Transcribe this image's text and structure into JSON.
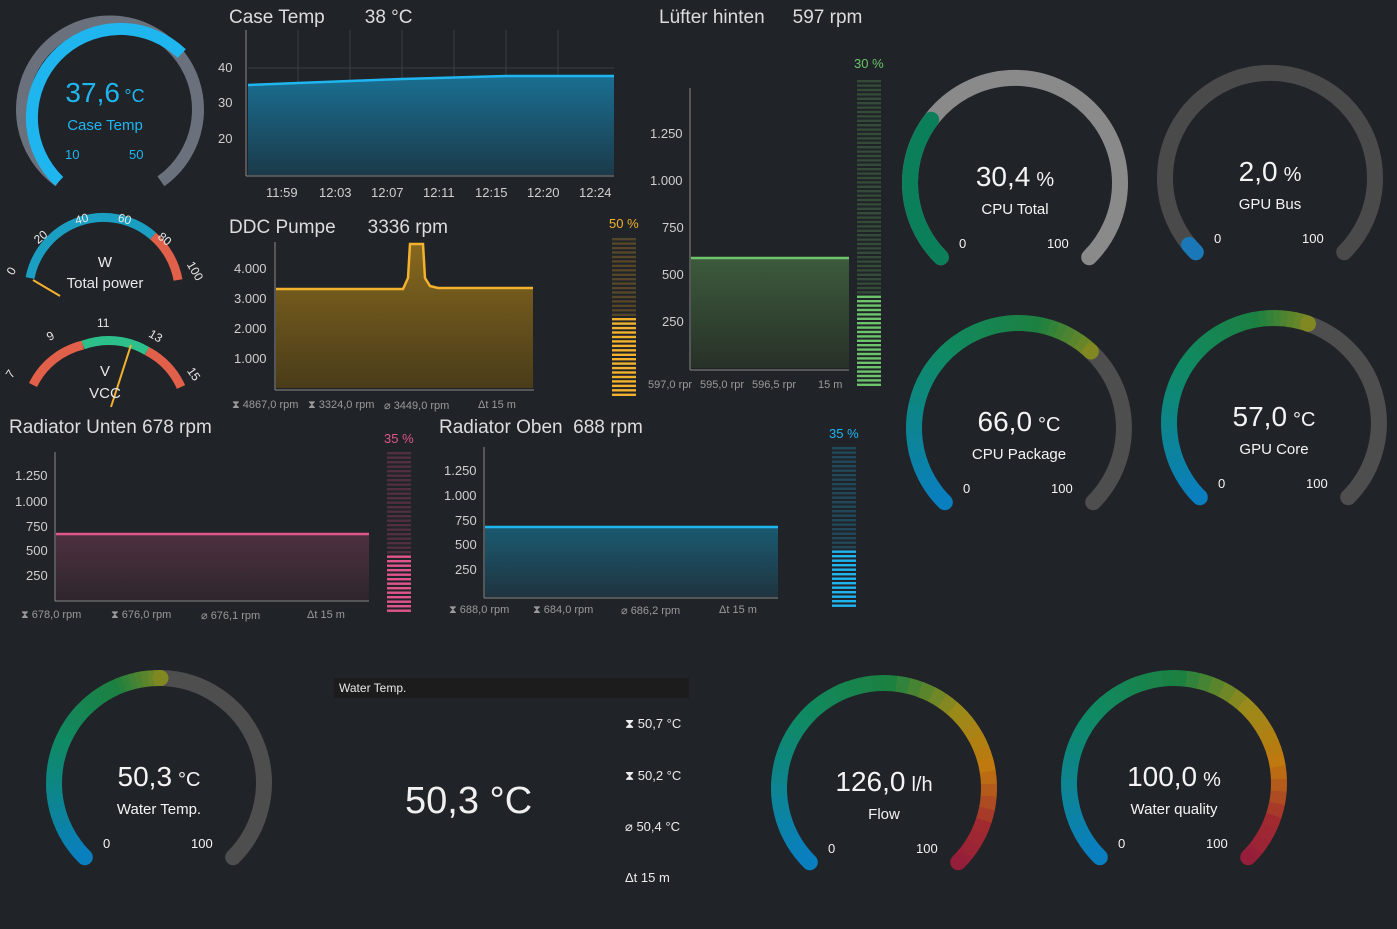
{
  "case_gauge": {
    "value": "37,6",
    "unit": "°C",
    "label": "Case Temp",
    "min": "10",
    "max": "50",
    "fraction": 0.69,
    "color": "#1fb6f0"
  },
  "case_chart": {
    "title": "Case Temp",
    "value": "38 °C",
    "y_ticks": [
      "40",
      "30",
      "20"
    ],
    "x_ticks": [
      "11:59",
      "12:03",
      "12:07",
      "12:11",
      "12:15",
      "12:20",
      "12:24"
    ]
  },
  "lufter": {
    "title": "Lüfter hinten",
    "value": "597 rpm",
    "percent": "30 %",
    "y_ticks": [
      "1.250",
      "1.000",
      "750",
      "500",
      "250"
    ],
    "footer": [
      "597,0 rpr",
      "595,0 rpr",
      "596,5 rpr",
      "15 m"
    ]
  },
  "power": {
    "unit": "W",
    "label": "Total power",
    "ticks": [
      "0",
      "20",
      "40",
      "60",
      "80",
      "100"
    ]
  },
  "vcc": {
    "unit": "V",
    "label": "VCC",
    "ticks": [
      "7",
      "9",
      "11",
      "13",
      "15"
    ]
  },
  "ddc": {
    "title": "DDC Pumpe",
    "value": "3336 rpm",
    "percent": "50 %",
    "y_ticks": [
      "4.000",
      "3.000",
      "2.000",
      "1.000"
    ],
    "footer": [
      "4867,0 rpm",
      "3324,0 rpm",
      "3449,0 rpm",
      "15 m"
    ]
  },
  "rad_unten": {
    "title": "Radiator Unten",
    "value": "678 rpm",
    "percent": "35 %",
    "y_ticks": [
      "1.250",
      "1.000",
      "750",
      "500",
      "250"
    ],
    "footer": [
      "678,0 rpm",
      "676,0 rpm",
      "676,1 rpm",
      "15 m"
    ]
  },
  "rad_oben": {
    "title": "Radiator Oben",
    "value": "688 rpm",
    "percent": "35 %",
    "y_ticks": [
      "1.250",
      "1.000",
      "750",
      "500",
      "250"
    ],
    "footer": [
      "688,0 rpm",
      "684,0 rpm",
      "686,2 rpm",
      "15 m"
    ]
  },
  "gauges": {
    "cpu_total": {
      "value": "30,4",
      "unit": "%",
      "label": "CPU Total",
      "min": "0",
      "max": "100",
      "fraction": 0.304
    },
    "gpu_bus": {
      "value": "2,0",
      "unit": "%",
      "label": "GPU Bus",
      "min": "0",
      "max": "100",
      "fraction": 0.02
    },
    "cpu_package": {
      "value": "66,0",
      "unit": "°C",
      "label": "CPU Package",
      "min": "0",
      "max": "100",
      "fraction": 0.66
    },
    "gpu_core": {
      "value": "57,0",
      "unit": "°C",
      "label": "GPU Core",
      "min": "0",
      "max": "100",
      "fraction": 0.57
    },
    "water_temp": {
      "value": "50,3",
      "unit": "°C",
      "label": "Water Temp.",
      "min": "0",
      "max": "100",
      "fraction": 0.503
    },
    "flow": {
      "value": "126,0",
      "unit": "l/h",
      "label": "Flow",
      "min": "0",
      "max": "100",
      "fraction": 1.0
    },
    "water_quality": {
      "value": "100,0",
      "unit": "%",
      "label": "Water quality",
      "min": "0",
      "max": "100",
      "fraction": 1.0
    }
  },
  "water_panel": {
    "header": "Water Temp.",
    "big_value": "50,3 °C",
    "max": "50,7 °C",
    "min": "50,2 °C",
    "avg": "50,4 °C",
    "span": "15 m"
  },
  "colors": {
    "cyan": "#1fb6f0",
    "orange": "#f2b12e",
    "green": "#6cc46b",
    "pink": "#e0558b",
    "track": "#555555"
  }
}
